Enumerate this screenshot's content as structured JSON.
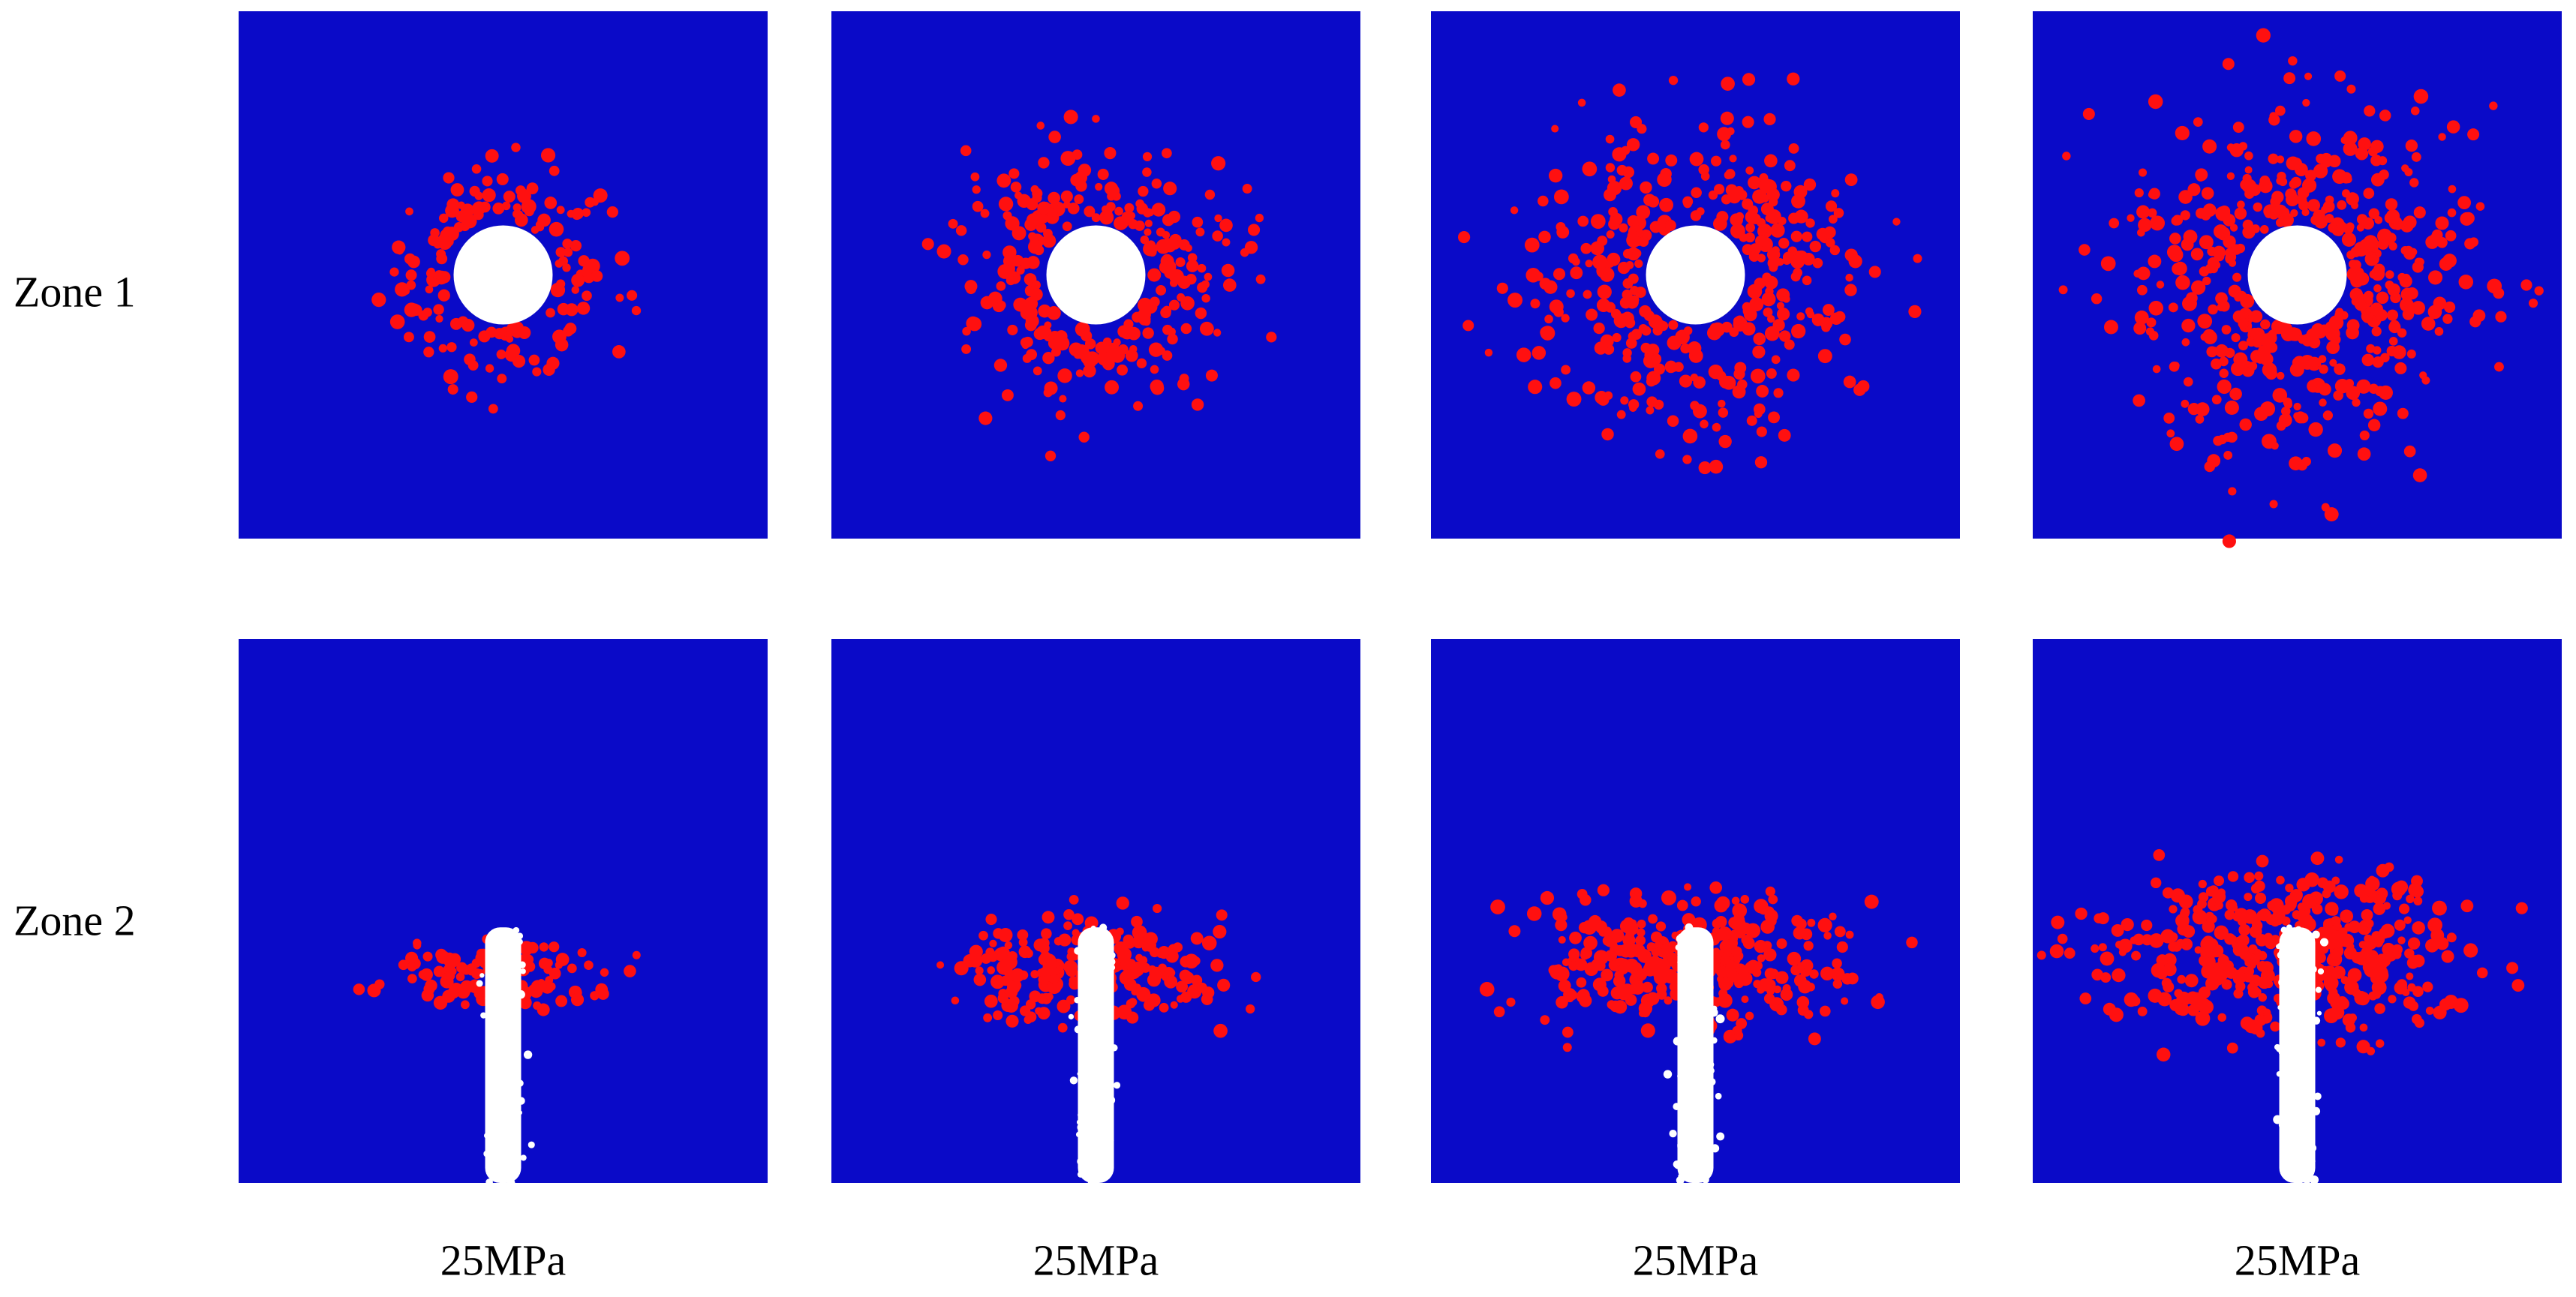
{
  "row_labels": [
    "Zone 1",
    "Zone 2"
  ],
  "column_labels": [
    "25MPa",
    "25MPa",
    "25MPa",
    "25MPa"
  ]
}
